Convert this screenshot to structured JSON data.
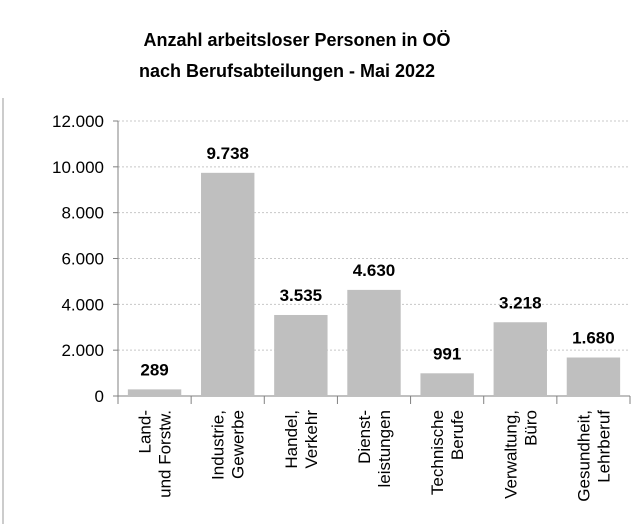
{
  "chart_data": {
    "type": "bar",
    "title": [
      "Anzahl arbeitsloser Personen in OÖ",
      "nach Berufsabteilungen - Mai 2022"
    ],
    "categories": [
      [
        "Land-",
        "und Forstw."
      ],
      [
        "Industrie,",
        "Gewerbe"
      ],
      [
        "Handel,",
        "Verkehr"
      ],
      [
        "Dienst-",
        "leistungen"
      ],
      [
        "Technische",
        "Berufe"
      ],
      [
        "Verwaltung,",
        "Büro"
      ],
      [
        "Gesundheit,",
        "Lehrberuf"
      ]
    ],
    "values": [
      289,
      9738,
      3535,
      4630,
      991,
      3218,
      1680
    ],
    "value_labels": [
      "289",
      "9.738",
      "3.535",
      "4.630",
      "991",
      "3.218",
      "1.680"
    ],
    "color": "#bfbfbf",
    "ylim": [
      0,
      12000
    ],
    "yticks": [
      0,
      {
        "value": 2000,
        "label": "2.000"
      },
      {
        "value": 4000,
        "label": "4.000"
      },
      {
        "value": 6000,
        "label": "6.000"
      },
      {
        "value": 8000,
        "label": "8.000"
      },
      {
        "value": 10000,
        "label": "10.000"
      },
      {
        "value": 12000,
        "label": "12.000"
      }
    ],
    "grid": true
  }
}
